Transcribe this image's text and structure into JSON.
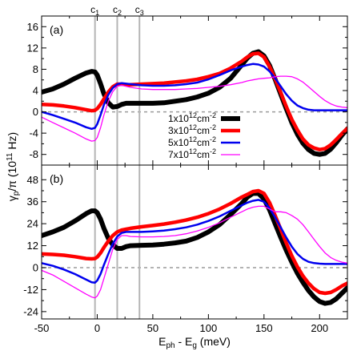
{
  "chart_data": {
    "type": "line",
    "xlabel": "E_ph - E_g (meV)",
    "ylabel": "γ_p/π (10^11 Hz)",
    "xlim": [
      -50,
      225
    ],
    "x_ticks": [
      "-50",
      "0",
      "50",
      "100",
      "150",
      "200"
    ],
    "x_tick_values": [
      -50,
      0,
      50,
      100,
      150,
      200
    ],
    "markers": [
      {
        "label": "c",
        "sub": "1",
        "x": -2
      },
      {
        "label": "c",
        "sub": "2",
        "x": 18
      },
      {
        "label": "c",
        "sub": "3",
        "x": 38
      }
    ],
    "legend": {
      "placement": "center-right",
      "entries": [
        {
          "base": "1x10",
          "exp": "12",
          "unit": "cm",
          "unit_exp": "-2"
        },
        {
          "base": "3x10",
          "exp": "12",
          "unit": "cm",
          "unit_exp": "-2"
        },
        {
          "base": "5x10",
          "exp": "12",
          "unit": "cm",
          "unit_exp": "-2"
        },
        {
          "base": "7x10",
          "exp": "12",
          "unit": "cm",
          "unit_exp": "-2"
        }
      ]
    },
    "series_styles": [
      {
        "color": "#000000",
        "width": 6
      },
      {
        "color": "#ff0000",
        "width": 4.5
      },
      {
        "color": "#0000ee",
        "width": 2.5
      },
      {
        "color": "#ff00ff",
        "width": 1.3
      }
    ],
    "panels": [
      {
        "label": "(a)",
        "ylim": [
          -10,
          18
        ],
        "y_ticks": [
          "16",
          "12",
          "8",
          "4",
          "0",
          "-4",
          "-8"
        ],
        "y_tick_values": [
          16,
          12,
          8,
          4,
          0,
          -4,
          -8
        ],
        "zero_line": true,
        "series": [
          {
            "x": [
              -50,
              -40,
              -30,
              -20,
              -10,
              -5,
              -2,
              0,
              3,
              6,
              10,
              14,
              18,
              22,
              26,
              30,
              40,
              50,
              60,
              70,
              80,
              90,
              100,
              110,
              120,
              130,
              135,
              140,
              145,
              150,
              155,
              160,
              165,
              170,
              175,
              180,
              185,
              190,
              195,
              200,
              205,
              210,
              215,
              220,
              225
            ],
            "y": [
              3.7,
              4.3,
              5.2,
              6.3,
              7.3,
              7.6,
              7.5,
              6.9,
              5.3,
              3.4,
              1.7,
              0.9,
              1.0,
              1.4,
              1.6,
              1.6,
              1.6,
              1.6,
              1.7,
              2.0,
              2.3,
              2.8,
              3.5,
              4.6,
              6.3,
              8.8,
              10.1,
              11.0,
              11.3,
              10.5,
              8.7,
              6.1,
              3.3,
              0.6,
              -2.0,
              -4.2,
              -5.9,
              -7.1,
              -7.8,
              -8.0,
              -7.8,
              -7.0,
              -5.8,
              -4.4,
              -3.2
            ]
          },
          {
            "x": [
              -50,
              -40,
              -30,
              -20,
              -10,
              -5,
              -2,
              0,
              3,
              6,
              10,
              14,
              18,
              22,
              26,
              30,
              40,
              50,
              60,
              70,
              80,
              90,
              100,
              110,
              120,
              130,
              135,
              140,
              145,
              150,
              155,
              160,
              165,
              170,
              175,
              180,
              185,
              190,
              195,
              200,
              205,
              210,
              215,
              220,
              225
            ],
            "y": [
              1.4,
              1.3,
              1.1,
              0.8,
              0.4,
              0.2,
              0.3,
              0.6,
              1.4,
              2.4,
              3.7,
              4.7,
              5.2,
              5.2,
              5.1,
              5.1,
              5.2,
              5.3,
              5.4,
              5.6,
              5.8,
              6.1,
              6.6,
              7.2,
              8.2,
              9.5,
              10.3,
              10.9,
              11.0,
              10.3,
              8.5,
              6.2,
              3.6,
              1.0,
              -1.4,
              -3.4,
              -5.1,
              -6.2,
              -6.8,
              -7.1,
              -6.9,
              -6.2,
              -5.2,
              -4.1,
              -3.1
            ]
          },
          {
            "x": [
              -50,
              -40,
              -30,
              -20,
              -10,
              -5,
              -2,
              0,
              3,
              6,
              10,
              14,
              18,
              22,
              26,
              30,
              40,
              50,
              60,
              70,
              80,
              90,
              100,
              110,
              120,
              130,
              135,
              140,
              145,
              150,
              155,
              160,
              165,
              170,
              175,
              180,
              185,
              190,
              195,
              200,
              205,
              210,
              215,
              220,
              225
            ],
            "y": [
              0.0,
              -0.6,
              -1.3,
              -2.0,
              -2.9,
              -3.2,
              -3.0,
              -2.3,
              -0.6,
              1.3,
              3.2,
              4.5,
              5.2,
              5.4,
              5.3,
              5.2,
              5.0,
              4.9,
              4.9,
              5.0,
              5.2,
              5.5,
              6.1,
              6.9,
              7.8,
              8.5,
              8.8,
              9.0,
              8.9,
              8.5,
              7.6,
              6.3,
              4.8,
              3.3,
              2.1,
              1.2,
              0.7,
              0.4,
              0.3,
              0.3,
              0.3,
              0.3,
              0.3,
              0.3,
              0.3
            ]
          },
          {
            "x": [
              -50,
              -40,
              -30,
              -20,
              -10,
              -5,
              -2,
              0,
              3,
              6,
              10,
              14,
              18,
              22,
              26,
              30,
              40,
              50,
              60,
              70,
              80,
              90,
              100,
              110,
              120,
              130,
              135,
              140,
              145,
              150,
              155,
              160,
              165,
              170,
              175,
              180,
              185,
              190,
              195,
              200,
              205,
              210,
              215,
              220,
              225
            ],
            "y": [
              -1.0,
              -2.0,
              -3.0,
              -4.0,
              -5.1,
              -5.5,
              -5.4,
              -4.8,
              -3.0,
              -0.6,
              2.0,
              3.8,
              4.8,
              5.0,
              4.8,
              4.6,
              4.3,
              4.2,
              4.2,
              4.2,
              4.3,
              4.4,
              4.6,
              4.8,
              5.1,
              5.5,
              5.8,
              6.0,
              6.2,
              6.3,
              6.4,
              6.6,
              6.7,
              6.7,
              6.6,
              6.2,
              5.6,
              4.7,
              3.8,
              2.9,
              2.1,
              1.5,
              1.1,
              0.9,
              0.8
            ]
          }
        ]
      },
      {
        "label": "(b)",
        "ylim": [
          -28,
          56
        ],
        "y_ticks": [
          "48",
          "36",
          "24",
          "12",
          "0",
          "-12",
          "-24"
        ],
        "y_tick_values": [
          48,
          36,
          24,
          12,
          0,
          -12,
          -24
        ],
        "zero_line": true,
        "series": [
          {
            "x": [
              -50,
              -40,
              -30,
              -20,
              -10,
              -5,
              -2,
              0,
              3,
              6,
              10,
              14,
              18,
              22,
              26,
              30,
              40,
              50,
              60,
              70,
              80,
              90,
              100,
              110,
              120,
              130,
              135,
              140,
              145,
              150,
              155,
              160,
              165,
              170,
              175,
              180,
              185,
              190,
              195,
              200,
              205,
              210,
              215,
              220,
              225
            ],
            "y": [
              17.5,
              19.5,
              22.0,
              25.5,
              29.5,
              31.0,
              31.0,
              30.0,
              26.5,
              21.5,
              16.0,
              12.5,
              10.5,
              10.5,
              11.5,
              12.0,
              12.2,
              12.4,
              12.8,
              13.5,
              14.5,
              16.5,
              19.5,
              23.5,
              29.0,
              35.0,
              38.5,
              40.5,
              40.5,
              37.5,
              31.5,
              24.0,
              16.5,
              9.5,
              3.0,
              -3.0,
              -8.0,
              -12.5,
              -16.0,
              -18.5,
              -19.5,
              -19.0,
              -17.0,
              -14.0,
              -11.0
            ]
          },
          {
            "x": [
              -50,
              -40,
              -30,
              -20,
              -10,
              -5,
              -2,
              0,
              3,
              6,
              10,
              14,
              18,
              22,
              26,
              30,
              40,
              50,
              60,
              70,
              80,
              90,
              100,
              110,
              120,
              130,
              135,
              140,
              145,
              150,
              155,
              160,
              165,
              170,
              175,
              180,
              185,
              190,
              195,
              200,
              205,
              210,
              215,
              220,
              225
            ],
            "y": [
              7.5,
              7.2,
              6.8,
              6.0,
              5.0,
              4.8,
              5.0,
              5.8,
              8.0,
              11.0,
              14.5,
              17.5,
              19.5,
              20.5,
              21.0,
              21.5,
              22.3,
              23.0,
              23.8,
              24.8,
              26.0,
              27.5,
              29.5,
              32.0,
              35.0,
              38.5,
              40.0,
              41.5,
              42.0,
              40.5,
              35.5,
              28.5,
              21.0,
              13.5,
              6.5,
              0.5,
              -4.5,
              -8.5,
              -11.5,
              -13.5,
              -14.0,
              -13.5,
              -12.0,
              -10.0,
              -8.5
            ]
          },
          {
            "x": [
              -50,
              -40,
              -30,
              -20,
              -10,
              -5,
              -2,
              0,
              3,
              6,
              10,
              14,
              18,
              22,
              26,
              30,
              40,
              50,
              60,
              70,
              80,
              90,
              100,
              110,
              120,
              130,
              135,
              140,
              145,
              150,
              155,
              160,
              165,
              170,
              175,
              180,
              185,
              190,
              195,
              200,
              205,
              210,
              215,
              220,
              225
            ],
            "y": [
              2.5,
              1.0,
              -1.0,
              -3.5,
              -6.5,
              -8.0,
              -8.2,
              -7.0,
              -3.5,
              1.5,
              7.5,
              13.0,
              17.0,
              19.0,
              19.5,
              19.5,
              19.5,
              19.8,
              20.2,
              21.0,
              22.0,
              23.5,
              25.5,
              28.0,
              31.0,
              34.0,
              35.5,
              36.5,
              37.0,
              36.0,
              32.5,
              27.5,
              22.0,
              16.5,
              11.5,
              7.5,
              4.8,
              3.2,
              2.5,
              2.2,
              2.0,
              2.0,
              2.0,
              2.0,
              2.0
            ]
          },
          {
            "x": [
              -50,
              -40,
              -30,
              -20,
              -10,
              -5,
              -2,
              0,
              3,
              6,
              10,
              14,
              18,
              22,
              26,
              30,
              40,
              50,
              60,
              70,
              80,
              90,
              100,
              110,
              120,
              130,
              135,
              140,
              145,
              150,
              155,
              160,
              165,
              170,
              175,
              180,
              185,
              190,
              195,
              200,
              205,
              210,
              215,
              220,
              225
            ],
            "y": [
              -1.5,
              -4.0,
              -7.5,
              -11.0,
              -14.5,
              -16.0,
              -16.5,
              -15.5,
              -12.0,
              -6.0,
              2.0,
              10.0,
              15.5,
              17.5,
              17.5,
              17.0,
              16.8,
              16.8,
              17.0,
              17.5,
              18.5,
              20.0,
              22.0,
              24.5,
              27.5,
              30.5,
              32.0,
              33.0,
              33.5,
              33.5,
              32.0,
              30.5,
              30.5,
              30.0,
              28.5,
              26.5,
              23.5,
              19.5,
              15.5,
              11.5,
              8.0,
              5.5,
              4.0,
              3.0,
              2.5
            ]
          }
        ]
      }
    ]
  }
}
